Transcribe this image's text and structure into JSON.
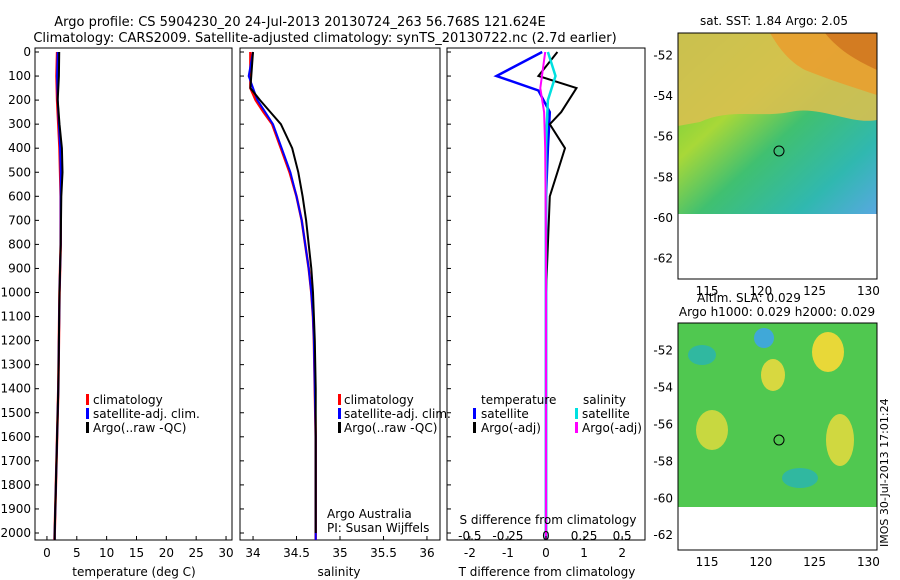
{
  "title_line1": "Argo profile: CS 5904230_20 24-Jul-2013 20130724_263 56.768S 121.624E",
  "title_line2": "Climatology: CARS2009. Satellite-adjusted climatology: synTS_20130722.nc (2.7d earlier)",
  "side_text": "IMOS 30-Jul-2013 17:01:24",
  "depth_ticks": [
    0,
    100,
    200,
    300,
    400,
    500,
    600,
    700,
    800,
    900,
    1000,
    1100,
    1200,
    1300,
    1400,
    1500,
    1600,
    1700,
    1800,
    1900,
    2000
  ],
  "colors": {
    "climatology": "#ff0000",
    "satellite": "#0000ff",
    "argo": "#000000",
    "s_satellite": "#00e0e0",
    "s_argo": "#ff00ff"
  },
  "panel_temp": {
    "xlabel": "temperature (deg C)",
    "xticks": [
      "0",
      "5",
      "10",
      "15",
      "20",
      "25",
      "30"
    ],
    "legend": [
      "climatology",
      "satellite-adj. clim.",
      "Argo(..raw -QC)"
    ]
  },
  "panel_sal": {
    "xlabel": "salinity",
    "xticks": [
      "34",
      "34.5",
      "35",
      "35.5",
      "36"
    ],
    "legend": [
      "climatology",
      "satellite-adj. clim.",
      "Argo(..raw -QC)"
    ],
    "credit1": "Argo Australia",
    "credit2": "PI: Susan Wijffels"
  },
  "panel_diff": {
    "xlabel": "T difference from climatology",
    "xticks": [
      "-2",
      "-1",
      "0",
      "1",
      "2"
    ],
    "s_label": "S difference from climatology",
    "s_ticks": [
      "-0.5",
      "-0.25",
      "0",
      "0.25",
      "0.5"
    ],
    "legend_head_t": "temperature",
    "legend_head_s": "salinity",
    "legend_t": [
      "satellite",
      "Argo(-adj)"
    ],
    "legend_s": [
      "satellite",
      "Argo(-adj)"
    ]
  },
  "map_sst": {
    "title": "sat. SST: 1.84 Argo: 2.05",
    "xticks": [
      "115",
      "120",
      "125",
      "130"
    ],
    "yticks": [
      "-52",
      "-54",
      "-56",
      "-58",
      "-60",
      "-62"
    ]
  },
  "map_sla": {
    "title1": "Altim. SLA: 0.029",
    "title2": "Argo h1000: 0.029 h2000: 0.029",
    "xticks": [
      "115",
      "120",
      "125",
      "130"
    ],
    "yticks": [
      "-52",
      "-54",
      "-56",
      "-58",
      "-60",
      "-62"
    ]
  },
  "chart_data": [
    {
      "type": "line",
      "xlabel": "temperature (deg C)",
      "xlim": [
        -2,
        31
      ],
      "ylim": [
        2080,
        0
      ],
      "series": [
        {
          "name": "climatology",
          "x": [
            1.7,
            1.6,
            1.7,
            1.9,
            2.1,
            2.2,
            2.3,
            2.3,
            2.3,
            2.2,
            2.1,
            2.0,
            1.9,
            1.8,
            1.7,
            1.6,
            1.5,
            1.4,
            1.3,
            1.2
          ],
          "y": [
            0,
            100,
            200,
            300,
            400,
            500,
            600,
            700,
            800,
            900,
            1000,
            1200,
            1400,
            1500,
            1600,
            1700,
            1800,
            1900,
            2000,
            2080
          ]
        },
        {
          "name": "satellite-adj. clim.",
          "x": [
            1.8,
            1.7,
            1.8,
            2.0,
            2.2,
            2.3,
            2.3,
            2.3,
            2.3,
            2.2,
            2.1,
            2.0,
            1.9,
            1.8,
            1.7,
            1.6,
            1.5,
            1.4,
            1.3,
            1.3
          ],
          "y": [
            0,
            100,
            200,
            300,
            400,
            500,
            600,
            700,
            800,
            900,
            1000,
            1200,
            1400,
            1500,
            1600,
            1700,
            1800,
            1900,
            2000,
            2080
          ]
        },
        {
          "name": "Argo(..raw -QC)",
          "x": [
            2.05,
            2.0,
            1.8,
            2.1,
            2.5,
            2.6,
            2.4,
            2.35,
            2.3,
            2.2,
            2.1,
            2.0,
            1.9,
            1.8,
            1.7,
            1.6,
            1.5,
            1.4,
            1.3,
            1.3
          ],
          "y": [
            0,
            100,
            200,
            300,
            400,
            500,
            600,
            700,
            800,
            900,
            1000,
            1200,
            1400,
            1500,
            1600,
            1700,
            1800,
            1900,
            2000,
            2080
          ]
        }
      ]
    },
    {
      "type": "line",
      "xlabel": "salinity",
      "xlim": [
        33.85,
        36.15
      ],
      "ylim": [
        2080,
        0
      ],
      "series": [
        {
          "name": "climatology",
          "x": [
            33.97,
            33.97,
            34.03,
            34.12,
            34.22,
            34.32,
            34.42,
            34.5,
            34.56,
            34.6,
            34.64,
            34.67,
            34.69,
            34.7,
            34.71,
            34.72,
            34.72,
            34.72
          ],
          "y": [
            0,
            150,
            200,
            250,
            300,
            400,
            500,
            600,
            700,
            800,
            900,
            1000,
            1100,
            1200,
            1400,
            1600,
            1800,
            2080
          ]
        },
        {
          "name": "satellite-adj. clim.",
          "x": [
            34.0,
            33.95,
            34.05,
            34.14,
            34.23,
            34.33,
            34.43,
            34.5,
            34.56,
            34.6,
            34.64,
            34.67,
            34.69,
            34.7,
            34.71,
            34.72,
            34.72,
            34.72
          ],
          "y": [
            0,
            100,
            200,
            250,
            300,
            400,
            500,
            600,
            700,
            800,
            900,
            1000,
            1100,
            1200,
            1400,
            1600,
            1800,
            2080
          ]
        },
        {
          "name": "Argo(..raw -QC)",
          "x": [
            34.0,
            33.97,
            34.08,
            34.2,
            34.32,
            34.45,
            34.52,
            34.57,
            34.61,
            34.64,
            34.67,
            34.69,
            34.7,
            34.71,
            34.72,
            34.72
          ],
          "y": [
            0,
            150,
            200,
            250,
            300,
            400,
            500,
            600,
            700,
            800,
            900,
            1000,
            1100,
            1200,
            1400,
            2000
          ]
        }
      ]
    },
    {
      "type": "line",
      "xlabel": "T difference from climatology",
      "xlim": [
        -2.6,
        2.6
      ],
      "ylim": [
        2080,
        0
      ],
      "series": [
        {
          "name": "temperature satellite",
          "x": [
            -0.1,
            -1.3,
            -0.2,
            0.1,
            0.05,
            0.0,
            0.0,
            0.0,
            0.0,
            0.0
          ],
          "y": [
            0,
            100,
            160,
            250,
            400,
            600,
            800,
            1200,
            1600,
            2080
          ]
        },
        {
          "name": "temperature Argo(-adj)",
          "x": [
            0.3,
            -0.2,
            0.8,
            0.4,
            0.1,
            0.5,
            0.3,
            0.1,
            0.05,
            0.0,
            0.0,
            0.0
          ],
          "y": [
            0,
            100,
            150,
            250,
            300,
            400,
            500,
            600,
            800,
            1000,
            1500,
            2080
          ]
        },
        {
          "name": "salinity satellite",
          "x": [
            0.05,
            0.25,
            0.05,
            0.02,
            0.0,
            0.0,
            0.0,
            0.0
          ],
          "y": [
            0,
            100,
            200,
            300,
            400,
            800,
            1400,
            2080
          ]
        },
        {
          "name": "salinity Argo(-adj)",
          "x": [
            -0.02,
            -0.15,
            -0.05,
            -0.02,
            -0.01,
            0.0,
            0.0
          ],
          "y": [
            0,
            150,
            250,
            400,
            600,
            800,
            2080
          ]
        }
      ]
    }
  ]
}
